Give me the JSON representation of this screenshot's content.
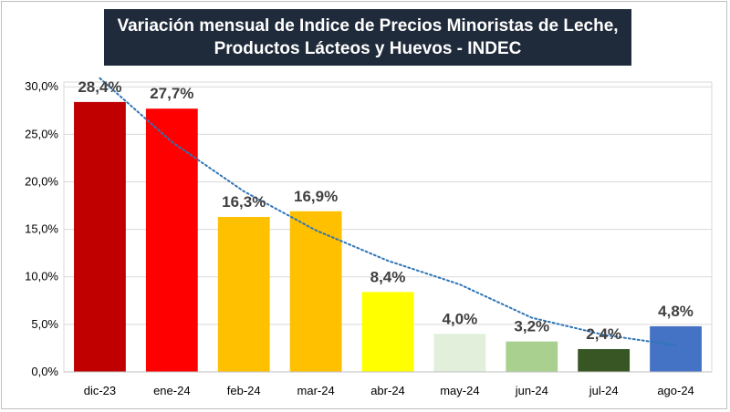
{
  "chart_data": {
    "type": "bar",
    "title_lines": [
      "Variación mensual de Indice de Precios Minoristas de Leche,",
      "Productos Lácteos y Huevos - INDEC"
    ],
    "categories": [
      "dic-23",
      "ene-24",
      "feb-24",
      "mar-24",
      "abr-24",
      "may-24",
      "jun-24",
      "jul-24",
      "ago-24"
    ],
    "values": [
      28.4,
      27.7,
      16.3,
      16.9,
      8.4,
      4.0,
      3.2,
      2.4,
      4.8
    ],
    "data_labels": [
      "28,4%",
      "27,7%",
      "16,3%",
      "16,9%",
      "8,4%",
      "4,0%",
      "3,2%",
      "2,4%",
      "4,8%"
    ],
    "bar_colors": [
      "#c00000",
      "#ff0000",
      "#ffc000",
      "#ffc000",
      "#ffff00",
      "#e2efda",
      "#a9d08e",
      "#375623",
      "#4472c4"
    ],
    "y_ticks": [
      0,
      5,
      10,
      15,
      20,
      25,
      30
    ],
    "y_tick_labels": [
      "0,0%",
      "5,0%",
      "10,0%",
      "15,0%",
      "20,0%",
      "25,0%",
      "30,0%"
    ],
    "ylim": [
      0,
      30.5
    ],
    "trendline": {
      "type": "exponential",
      "style": "dotted",
      "color": "#2e75b6",
      "values": [
        30.9,
        24.2,
        19.0,
        14.9,
        11.7,
        9.2,
        5.7,
        3.9,
        2.8
      ]
    },
    "grid": true,
    "legend": "none"
  }
}
